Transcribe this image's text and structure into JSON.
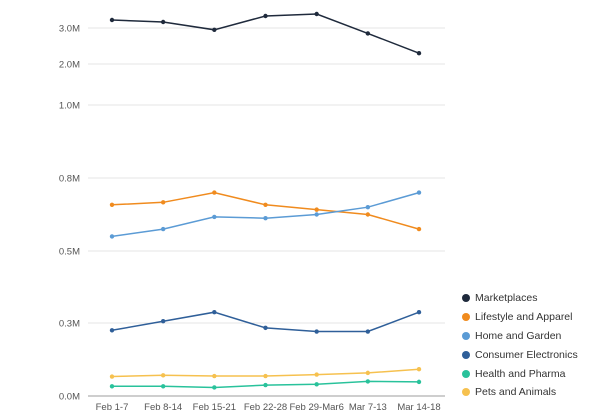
{
  "chart_data": {
    "type": "line",
    "categories": [
      "Feb 1-7",
      "Feb 8-14",
      "Feb 15-21",
      "Feb 22-28",
      "Feb 29-Mar6",
      "Mar 7-13",
      "Mar 14-18"
    ],
    "y_ticks": [
      {
        "value": 0,
        "label": "0.0M"
      },
      {
        "value": 300000,
        "label": "0.3M"
      },
      {
        "value": 500000,
        "label": "0.5M"
      },
      {
        "value": 800000,
        "label": "0.8M"
      },
      {
        "value": 1000000,
        "label": "1.0M"
      },
      {
        "value": 2000000,
        "label": "2.0M"
      },
      {
        "value": 3000000,
        "label": "3.0M"
      }
    ],
    "y_scale": "nonlinear (ticks at 0, 0.3M, 0.5M, 0.8M, 1.0M, 2.0M, 3.0M)",
    "ylim": [
      0,
      3600000
    ],
    "grid": "horizontal",
    "legend_position": "bottom-right",
    "series": [
      {
        "name": "Marketplaces",
        "color": "#1f2a3c",
        "values": [
          3200000,
          3150000,
          2950000,
          3300000,
          3350000,
          2850000,
          2300000
        ]
      },
      {
        "name": "Lifestyle and Apparel",
        "color": "#f08b1e",
        "values": [
          690000,
          700000,
          740000,
          690000,
          670000,
          650000,
          590000
        ]
      },
      {
        "name": "Home and Garden",
        "color": "#5b9bd5",
        "values": [
          560000,
          590000,
          640000,
          635000,
          650000,
          680000,
          740000
        ]
      },
      {
        "name": "Consumer Electronics",
        "color": "#2f5f99",
        "values": [
          270000,
          305000,
          330000,
          280000,
          265000,
          265000,
          330000
        ]
      },
      {
        "name": "Health and Pharma",
        "color": "#29c29b",
        "values": [
          40000,
          40000,
          35000,
          45000,
          48000,
          60000,
          58000
        ]
      },
      {
        "name": "Pets and Animals",
        "color": "#f6c14f",
        "values": [
          80000,
          85000,
          82000,
          82000,
          88000,
          95000,
          110000
        ]
      }
    ]
  }
}
